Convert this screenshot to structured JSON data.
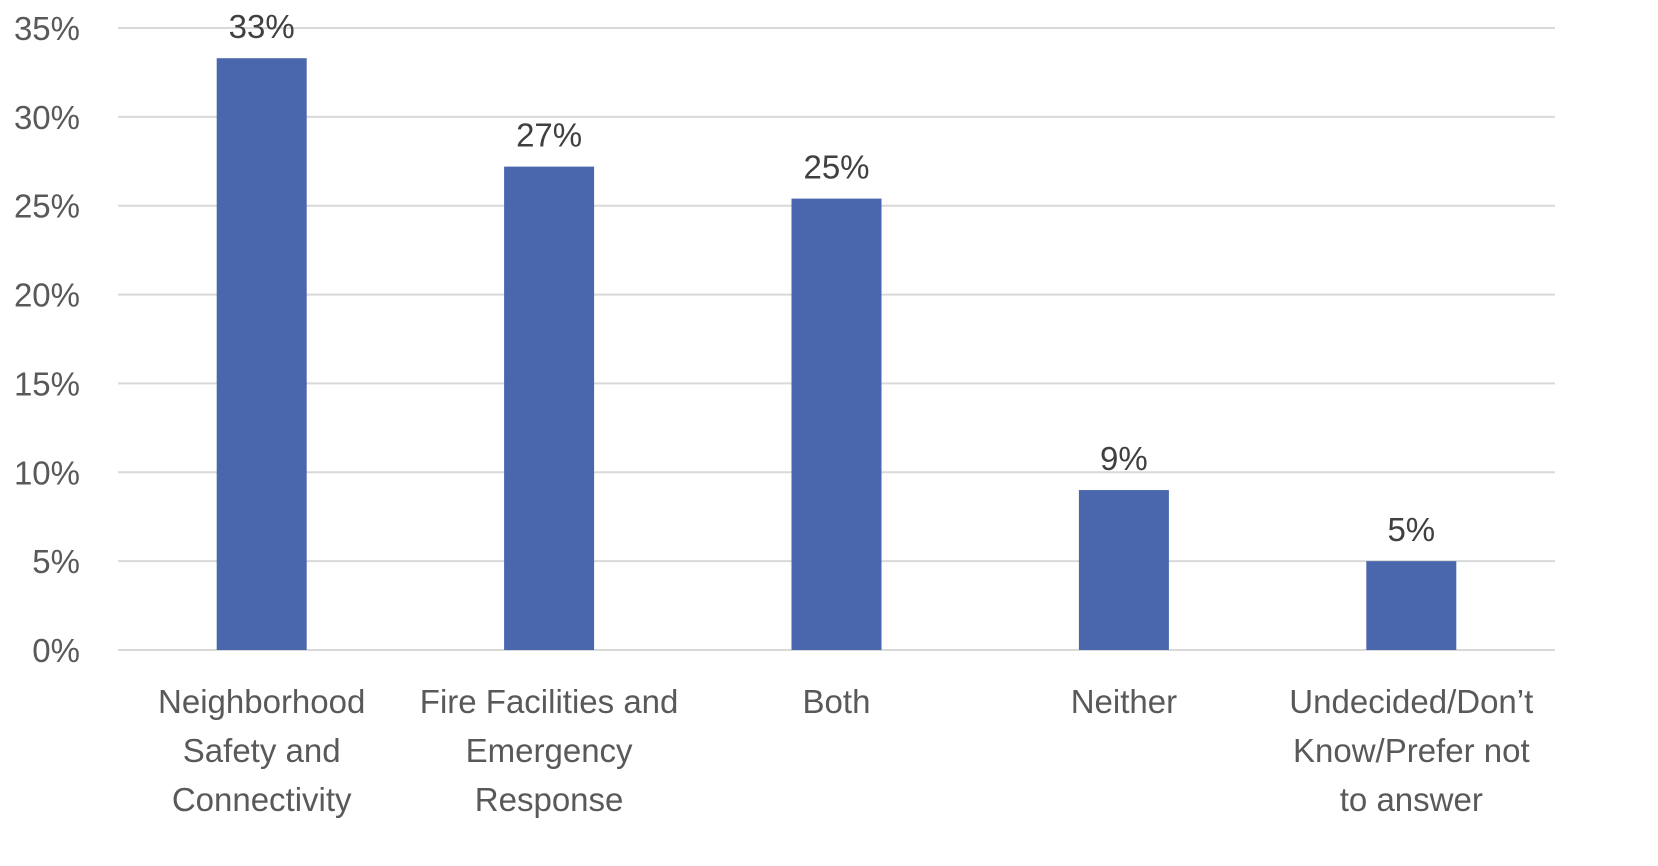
{
  "chart_data": {
    "type": "bar",
    "categories": [
      [
        "Neighborhood",
        "Safety and",
        "Connectivity"
      ],
      [
        "Fire Facilities and",
        "Emergency",
        "Response"
      ],
      [
        "Both"
      ],
      [
        "Neither"
      ],
      [
        "Undecided/Don’t",
        "Know/Prefer not",
        "to answer"
      ]
    ],
    "values": [
      33.3,
      27.2,
      25.4,
      9.0,
      5.0
    ],
    "data_labels": [
      "33%",
      "27%",
      "25%",
      "9%",
      "5%"
    ],
    "y_ticks": [
      "0%",
      "5%",
      "10%",
      "15%",
      "20%",
      "25%",
      "30%",
      "35%"
    ],
    "ylim": [
      0,
      35
    ],
    "title": "",
    "xlabel": "",
    "ylabel": "",
    "grid": true,
    "legend": "none",
    "colors": {
      "bar": "#4a66ac",
      "grid": "#d9d9d9",
      "tick_text": "#595959",
      "data_label_text": "#404040"
    }
  }
}
